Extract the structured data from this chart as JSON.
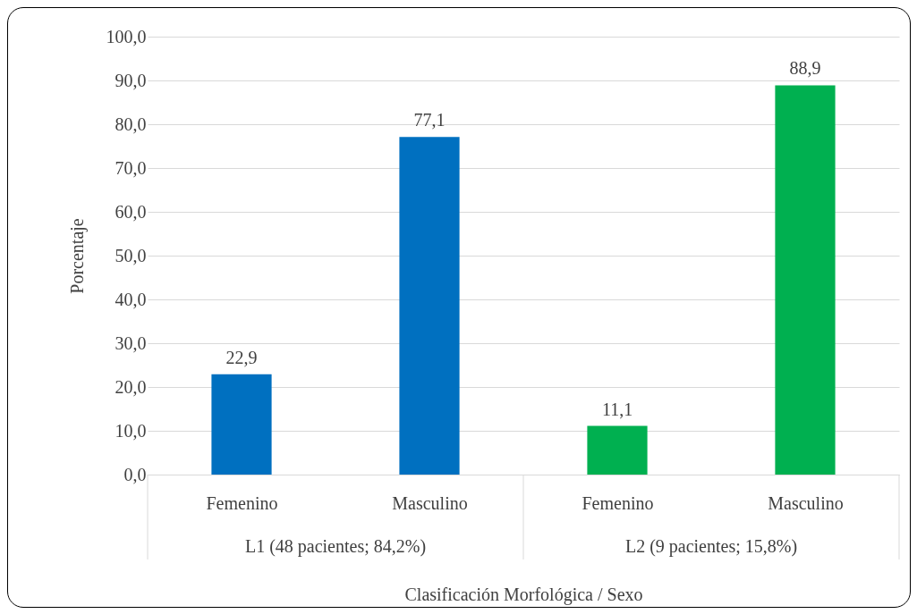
{
  "chart_data": {
    "type": "bar",
    "xlabel": "Clasificación Morfológica / Sexo",
    "ylabel": "Porcentaje",
    "categories": [
      "Femenino",
      "Masculino",
      "Femenino",
      "Masculino"
    ],
    "values": [
      22.9,
      77.1,
      11.1,
      88.9
    ],
    "colors": [
      "#0070c0",
      "#0070c0",
      "#00b050",
      "#00b050"
    ],
    "ylim": [
      0,
      100
    ],
    "yticks": [
      {
        "value": 0,
        "label": "0,0"
      },
      {
        "value": 10,
        "label": "10,0"
      },
      {
        "value": 20,
        "label": "20,0"
      },
      {
        "value": 30,
        "label": "30,0"
      },
      {
        "value": 40,
        "label": "40,0"
      },
      {
        "value": 50,
        "label": "50,0"
      },
      {
        "value": 60,
        "label": "60,0"
      },
      {
        "value": 70,
        "label": "70,0"
      },
      {
        "value": 80,
        "label": "80,0"
      },
      {
        "value": 90,
        "label": "90,0"
      },
      {
        "value": 100,
        "label": "100,0"
      }
    ],
    "grid": "y",
    "value_labels": [
      "22,9",
      "77,1",
      "11,1",
      "88,9"
    ],
    "annotations": [
      "L1 (48 pacientes; 84,2%)",
      "L2 (9 pacientes; 15,8%)"
    ]
  }
}
